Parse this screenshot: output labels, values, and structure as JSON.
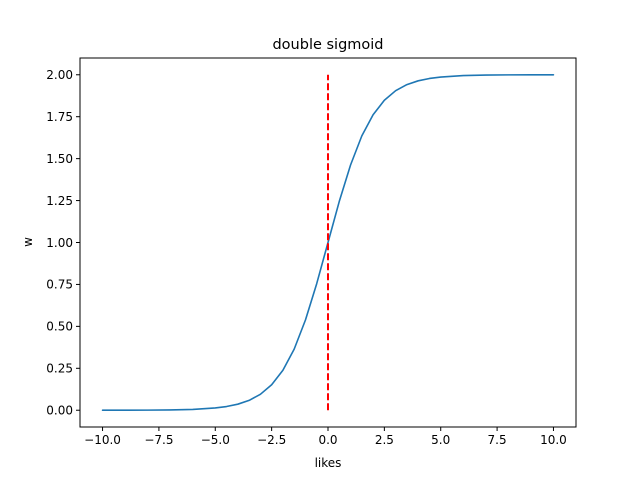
{
  "chart_data": {
    "type": "line",
    "title": "double sigmoid",
    "xlabel": "likes",
    "ylabel": "w",
    "xlim": [
      -11,
      11
    ],
    "ylim": [
      -0.1,
      2.1
    ],
    "x_ticks": [
      -10,
      -7.5,
      -5,
      -2.5,
      0,
      2.5,
      5,
      7.5,
      10
    ],
    "x_tick_labels": [
      "−10.0",
      "−7.5",
      "−5.0",
      "−2.5",
      "0.0",
      "2.5",
      "5.0",
      "7.5",
      "10.0"
    ],
    "y_ticks": [
      0,
      0.25,
      0.5,
      0.75,
      1,
      1.25,
      1.5,
      1.75,
      2
    ],
    "y_tick_labels": [
      "0.00",
      "0.25",
      "0.50",
      "0.75",
      "1.00",
      "1.25",
      "1.50",
      "1.75",
      "2.00"
    ],
    "grid": false,
    "series": [
      {
        "color": "#1f77b4",
        "style": "solid",
        "x": [
          -10,
          -9,
          -8,
          -7,
          -6,
          -5,
          -4.5,
          -4,
          -3.5,
          -3,
          -2.5,
          -2,
          -1.5,
          -1,
          -0.5,
          0,
          0.5,
          1,
          1.5,
          2,
          2.5,
          3,
          3.5,
          4,
          4.5,
          5,
          6,
          7,
          8,
          9,
          10
        ],
        "y": [
          0.0001,
          0.0002,
          0.0006,
          0.0018,
          0.0049,
          0.0134,
          0.0221,
          0.036,
          0.0586,
          0.0949,
          0.1518,
          0.2384,
          0.3644,
          0.5379,
          0.7551,
          1.0,
          1.2449,
          1.4621,
          1.6356,
          1.7616,
          1.8482,
          1.9051,
          1.9414,
          1.964,
          1.9779,
          1.9866,
          1.9951,
          1.9982,
          1.9994,
          1.9998,
          1.9999
        ]
      },
      {
        "color": "#ff0000",
        "style": "dashed",
        "x": [
          0,
          0
        ],
        "y": [
          0,
          2
        ]
      }
    ]
  }
}
